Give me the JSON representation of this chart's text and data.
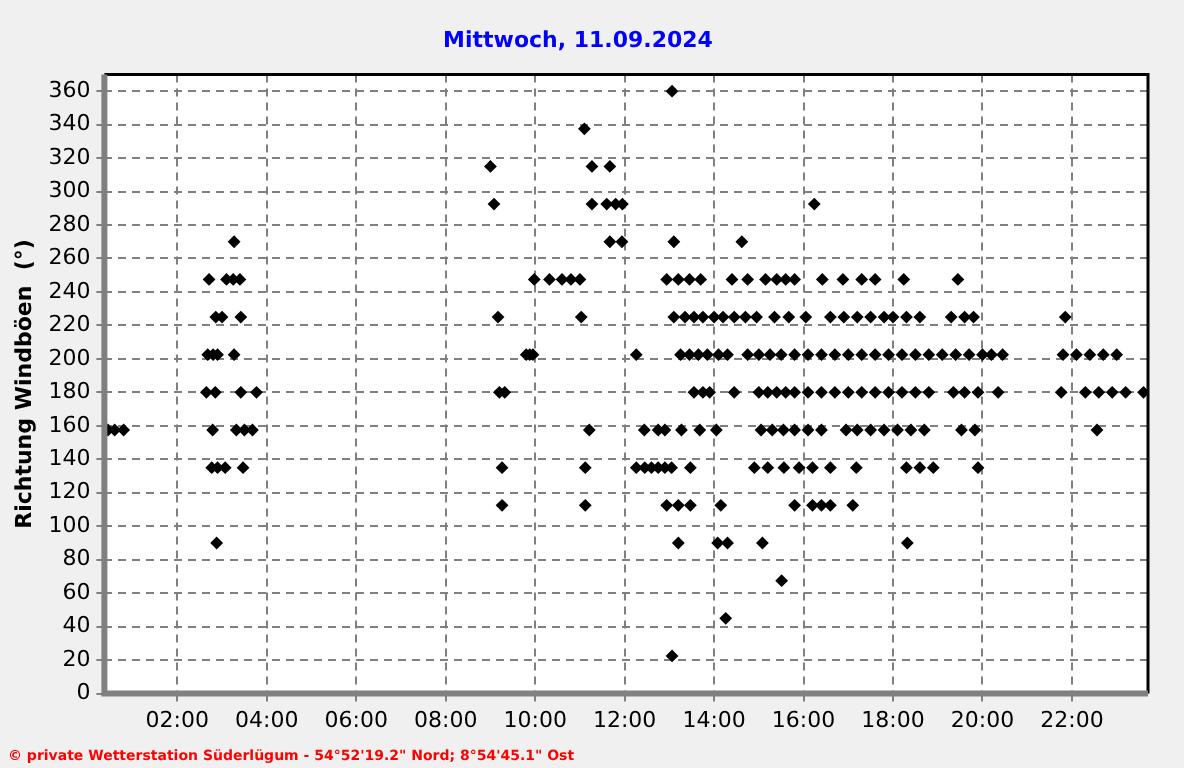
{
  "chart_data": {
    "type": "scatter",
    "title": "Mittwoch, 11.09.2024",
    "ylabel": "Richtung Windböen  (°)",
    "xlim": [
      0.37,
      23.7
    ],
    "xticks": [
      {
        "value": 2,
        "label": "02:00"
      },
      {
        "value": 4,
        "label": "04:00"
      },
      {
        "value": 6,
        "label": "06:00"
      },
      {
        "value": 8,
        "label": "08:00"
      },
      {
        "value": 10,
        "label": "10:00"
      },
      {
        "value": 12,
        "label": "12:00"
      },
      {
        "value": 14,
        "label": "14:00"
      },
      {
        "value": 16,
        "label": "16:00"
      },
      {
        "value": 18,
        "label": "18:00"
      },
      {
        "value": 20,
        "label": "20:00"
      },
      {
        "value": 22,
        "label": "22:00"
      }
    ],
    "ylim": [
      0,
      370
    ],
    "yticks": [
      0,
      20,
      40,
      60,
      80,
      100,
      120,
      140,
      160,
      180,
      200,
      220,
      240,
      260,
      280,
      300,
      320,
      340,
      360
    ],
    "grid": true,
    "legend": false,
    "marker": "diamond",
    "annotations": [
      "© private Wetterstation Süderlügum - 54°52'19.2\" Nord; 8°54'45.1\" Ost"
    ],
    "series": [
      {
        "color": "#000000",
        "x": [
          0.45,
          0.6,
          0.8,
          2.79,
          3.32,
          3.5,
          3.68,
          11.21,
          12.44,
          12.75,
          12.9,
          13.27,
          13.68,
          14.05,
          15.05,
          15.3,
          15.55,
          15.8,
          16.1,
          16.4,
          16.95,
          17.2,
          17.5,
          17.8,
          18.1,
          18.4,
          18.7,
          19.53,
          19.83,
          22.56,
          2.77,
          2.9,
          3.07,
          3.47,
          9.26,
          11.12,
          12.26,
          12.45,
          12.6,
          12.75,
          12.9,
          13.05,
          13.47,
          14.9,
          15.2,
          15.56,
          15.9,
          16.2,
          16.6,
          17.18,
          18.3,
          18.6,
          18.9,
          19.9,
          2.88,
          13.2,
          14.08,
          14.3,
          15.08,
          18.32,
          3.27,
          11.67,
          11.94,
          13.1,
          14.62,
          2.71,
          3.1,
          3.25,
          3.4,
          9.98,
          10.32,
          10.6,
          10.8,
          11.0,
          12.94,
          13.2,
          13.45,
          13.7,
          14.4,
          14.75,
          15.15,
          15.4,
          15.6,
          15.8,
          16.42,
          16.88,
          17.3,
          17.6,
          18.24,
          19.45,
          2.86,
          3.0,
          3.42,
          9.17,
          11.03,
          13.1,
          13.35,
          13.55,
          13.75,
          14.0,
          14.2,
          14.45,
          14.7,
          14.95,
          15.35,
          15.67,
          16.05,
          16.6,
          16.9,
          17.2,
          17.5,
          17.8,
          18.0,
          18.3,
          18.6,
          19.3,
          19.6,
          19.8,
          21.85,
          2.68,
          2.8,
          2.9,
          3.27,
          9.8,
          9.88,
          9.95,
          12.26,
          13.25,
          13.45,
          13.65,
          13.85,
          14.1,
          14.3,
          14.75,
          15.0,
          15.25,
          15.5,
          15.8,
          16.1,
          16.4,
          16.7,
          17.0,
          17.3,
          17.6,
          17.9,
          18.2,
          18.5,
          18.8,
          19.1,
          19.4,
          19.7,
          20.0,
          20.2,
          20.45,
          21.8,
          22.1,
          22.4,
          22.7,
          23.0,
          2.65,
          2.85,
          3.42,
          3.77,
          9.2,
          9.32,
          13.55,
          13.75,
          13.9,
          14.45,
          15.0,
          15.2,
          15.4,
          15.6,
          15.8,
          16.1,
          16.4,
          16.7,
          17.0,
          17.3,
          17.6,
          17.9,
          18.2,
          18.5,
          18.8,
          19.35,
          19.6,
          19.9,
          20.35,
          21.76,
          22.3,
          22.6,
          22.9,
          23.2,
          23.6,
          9.26,
          11.12,
          12.94,
          13.2,
          13.47,
          14.15,
          15.8,
          16.2,
          16.4,
          16.6,
          17.1,
          9.0,
          11.27,
          11.67,
          9.08,
          11.27,
          11.6,
          11.8,
          11.95,
          16.24,
          11.1,
          13.06,
          15.51,
          14.26,
          13.06
        ],
        "values": [
          157.5,
          157.5,
          157.5,
          157.5,
          157.5,
          157.5,
          157.5,
          157.5,
          157.5,
          157.5,
          157.5,
          157.5,
          157.5,
          157.5,
          157.5,
          157.5,
          157.5,
          157.5,
          157.5,
          157.5,
          157.5,
          157.5,
          157.5,
          157.5,
          157.5,
          157.5,
          157.5,
          157.5,
          157.5,
          157.5,
          135,
          135,
          135,
          135,
          135,
          135,
          135,
          135,
          135,
          135,
          135,
          135,
          135,
          135,
          135,
          135,
          135,
          135,
          135,
          135,
          135,
          135,
          135,
          135,
          90,
          90,
          90,
          90,
          90,
          90,
          270,
          270,
          270,
          270,
          270,
          247.5,
          247.5,
          247.5,
          247.5,
          247.5,
          247.5,
          247.5,
          247.5,
          247.5,
          247.5,
          247.5,
          247.5,
          247.5,
          247.5,
          247.5,
          247.5,
          247.5,
          247.5,
          247.5,
          247.5,
          247.5,
          247.5,
          247.5,
          247.5,
          247.5,
          225,
          225,
          225,
          225,
          225,
          225,
          225,
          225,
          225,
          225,
          225,
          225,
          225,
          225,
          225,
          225,
          225,
          225,
          225,
          225,
          225,
          225,
          225,
          225,
          225,
          225,
          225,
          225,
          225,
          202.5,
          202.5,
          202.5,
          202.5,
          202.5,
          202.5,
          202.5,
          202.5,
          202.5,
          202.5,
          202.5,
          202.5,
          202.5,
          202.5,
          202.5,
          202.5,
          202.5,
          202.5,
          202.5,
          202.5,
          202.5,
          202.5,
          202.5,
          202.5,
          202.5,
          202.5,
          202.5,
          202.5,
          202.5,
          202.5,
          202.5,
          202.5,
          202.5,
          202.5,
          202.5,
          202.5,
          202.5,
          202.5,
          202.5,
          202.5,
          180,
          180,
          180,
          180,
          180,
          180,
          180,
          180,
          180,
          180,
          180,
          180,
          180,
          180,
          180,
          180,
          180,
          180,
          180,
          180,
          180,
          180,
          180,
          180,
          180,
          180,
          180,
          180,
          180,
          180,
          180,
          180,
          180,
          180,
          180,
          112.5,
          112.5,
          112.5,
          112.5,
          112.5,
          112.5,
          112.5,
          112.5,
          112.5,
          112.5,
          112.5,
          315,
          315,
          315,
          292.5,
          292.5,
          292.5,
          292.5,
          292.5,
          292.5,
          337.5,
          360,
          67.5,
          45,
          22.5
        ]
      }
    ]
  }
}
